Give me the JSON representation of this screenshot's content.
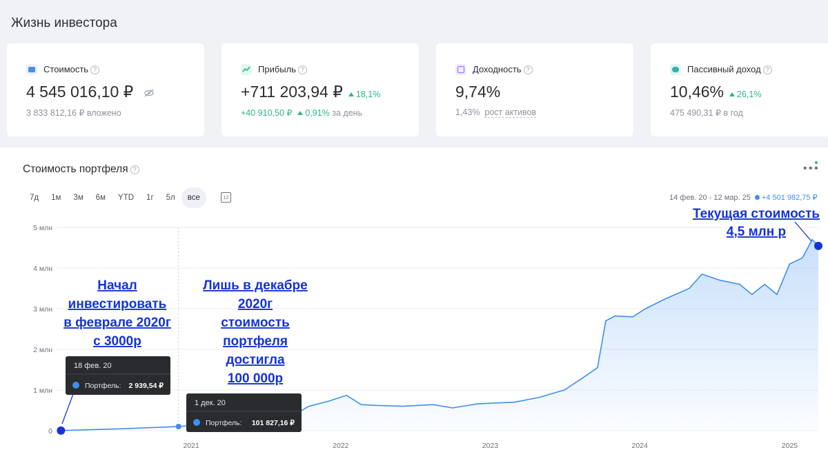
{
  "page_title": "Жизнь инвестора",
  "cards": [
    {
      "label": "Стоимость",
      "value": "4 545 016,10 ₽",
      "sub": "3 833 812,16 ₽ вложено",
      "icon": "wallet-icon",
      "icon_color": "#4a90e2"
    },
    {
      "label": "Прибыль",
      "value": "+711 203,94 ₽",
      "badge": "18,1%",
      "sub_value": "+40 910,50 ₽",
      "sub_badge": "0,91%",
      "sub_suffix": "за день",
      "icon": "chart-icon",
      "icon_color": "#2bb58f"
    },
    {
      "label": "Доходность",
      "value": "9,74%",
      "sub_value": "1,43%",
      "sub_link": "рост активов",
      "icon": "calendar-icon",
      "icon_color": "#8e6cf0"
    },
    {
      "label": "Пассивный доход",
      "value": "10,46%",
      "badge": "26,1%",
      "sub": "475 490,31 ₽ в год",
      "icon": "piggy-bank-icon",
      "icon_color": "#2bb5a6"
    }
  ],
  "chart_panel": {
    "title": "Стоимость портфеля",
    "periods": [
      "7д",
      "1м",
      "3м",
      "6м",
      "YTD",
      "1г",
      "5л",
      "все"
    ],
    "active_period": "все",
    "range_label": "14 фев. 20 - 12 мар. 25",
    "range_delta": "+4 501 982,75 ₽"
  },
  "chart_data": {
    "type": "area",
    "y_ticks": [
      "0",
      "1 млн",
      "2 млн",
      "3 млн",
      "4 млн",
      "5 млн"
    ],
    "ylim": [
      0,
      5000000
    ],
    "x_ticks": [
      "2021",
      "2022",
      "2023",
      "2024",
      "2025"
    ],
    "x_range": [
      "2020-02-14",
      "2025-03-12"
    ],
    "series": [
      {
        "color": "#3d8ef0",
        "points": [
          [
            "2020-02-18",
            2940
          ],
          [
            "2020-07-01",
            40000
          ],
          [
            "2020-12-01",
            101827
          ],
          [
            "2021-03-01",
            170000
          ],
          [
            "2021-06-01",
            240000
          ],
          [
            "2021-08-01",
            300000
          ],
          [
            "2021-09-15",
            420000
          ],
          [
            "2021-10-15",
            600000
          ],
          [
            "2021-12-01",
            720000
          ],
          [
            "2022-01-15",
            870000
          ],
          [
            "2022-02-20",
            640000
          ],
          [
            "2022-04-01",
            620000
          ],
          [
            "2022-06-01",
            600000
          ],
          [
            "2022-08-15",
            640000
          ],
          [
            "2022-10-01",
            560000
          ],
          [
            "2022-12-01",
            660000
          ],
          [
            "2023-03-01",
            700000
          ],
          [
            "2023-05-01",
            820000
          ],
          [
            "2023-07-01",
            1000000
          ],
          [
            "2023-08-15",
            1300000
          ],
          [
            "2023-09-20",
            1550000
          ],
          [
            "2023-10-10",
            2700000
          ],
          [
            "2023-11-01",
            2820000
          ],
          [
            "2023-12-15",
            2800000
          ],
          [
            "2024-01-15",
            3000000
          ],
          [
            "2024-03-01",
            3230000
          ],
          [
            "2024-05-01",
            3500000
          ],
          [
            "2024-06-01",
            3850000
          ],
          [
            "2024-07-15",
            3700000
          ],
          [
            "2024-09-01",
            3600000
          ],
          [
            "2024-10-01",
            3350000
          ],
          [
            "2024-11-01",
            3600000
          ],
          [
            "2024-12-01",
            3350000
          ],
          [
            "2025-01-01",
            4100000
          ],
          [
            "2025-02-01",
            4250000
          ],
          [
            "2025-02-25",
            4700000
          ],
          [
            "2025-03-12",
            4545016
          ]
        ]
      }
    ],
    "tooltips": [
      {
        "date": "18 фев. 20",
        "series": "Портфель:",
        "value": "2 939,54 ₽"
      },
      {
        "date": "1 дек. 20",
        "series": "Портфель:",
        "value": "101 827,16 ₽"
      }
    ]
  },
  "annotations": [
    {
      "lines": [
        "Начал",
        "инвестировать",
        "в феврале 2020г",
        "с 3000р"
      ]
    },
    {
      "lines": [
        "Лишь в декабре",
        "2020г",
        "стоимость",
        "портфеля",
        "достигла",
        "100 000р"
      ]
    },
    {
      "lines": [
        "Текущая стоимость",
        "4,5 млн р"
      ]
    }
  ]
}
